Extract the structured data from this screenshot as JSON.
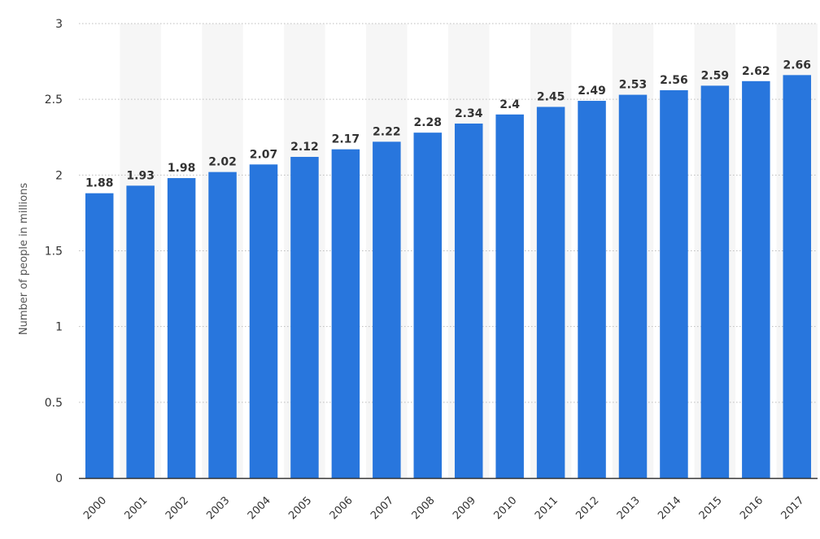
{
  "chart_data": {
    "type": "bar",
    "title": "",
    "xlabel": "",
    "ylabel": "Number of people in millions",
    "categories": [
      "2000",
      "2001",
      "2002",
      "2003",
      "2004",
      "2005",
      "2006",
      "2007",
      "2008",
      "2009",
      "2010",
      "2011",
      "2012",
      "2013",
      "2014",
      "2015",
      "2016",
      "2017"
    ],
    "values": [
      1.88,
      1.93,
      1.98,
      2.02,
      2.07,
      2.12,
      2.17,
      2.22,
      2.28,
      2.34,
      2.4,
      2.45,
      2.49,
      2.53,
      2.56,
      2.59,
      2.62,
      2.66
    ],
    "value_labels": [
      "1.88",
      "1.93",
      "1.98",
      "2.02",
      "2.07",
      "2.12",
      "2.17",
      "2.22",
      "2.28",
      "2.34",
      "2.4",
      "2.45",
      "2.49",
      "2.53",
      "2.56",
      "2.59",
      "2.62",
      "2.66"
    ],
    "ylim": [
      0,
      3
    ],
    "yticks": [
      "0",
      "0.5",
      "1",
      "1.5",
      "2",
      "2.5",
      "3"
    ],
    "grid": true,
    "legend": "none",
    "colors": {
      "bar": "#2876DD",
      "band": "#F6F6F6",
      "grid": "#BDBDBD",
      "axis": "#333333"
    }
  }
}
